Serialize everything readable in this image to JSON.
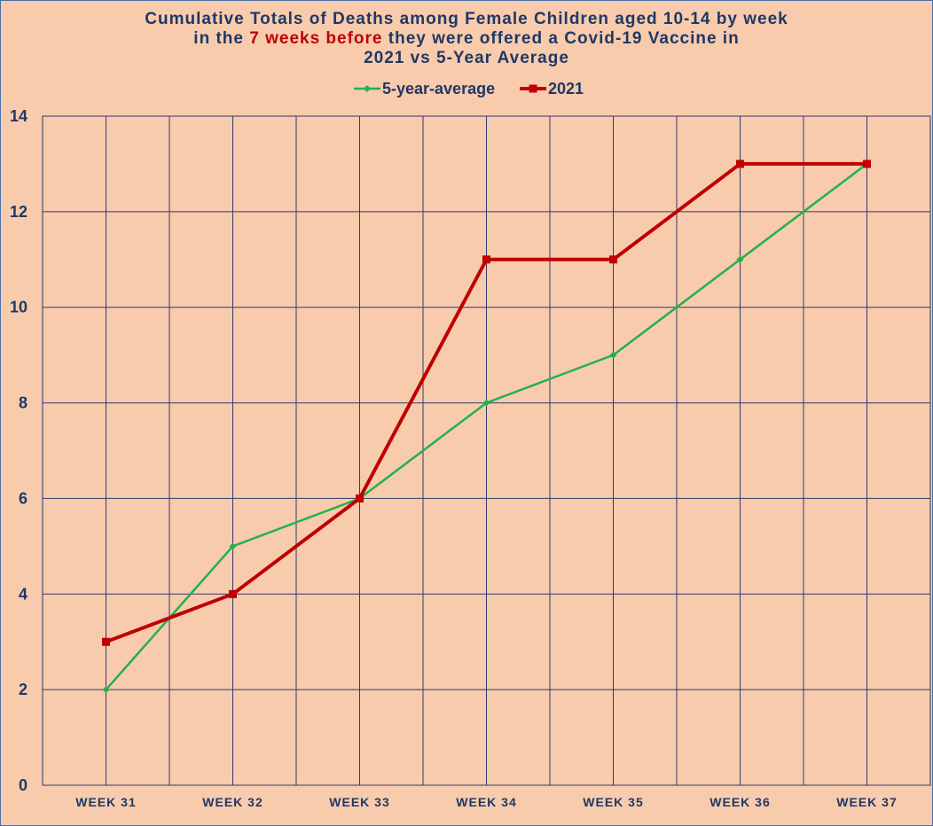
{
  "chart_data": {
    "type": "line",
    "title": {
      "line1": "Cumulative Totals of Deaths among Female Children aged 10-14 by week",
      "line2_pre": "in the ",
      "line2_highlight": "7 weeks before",
      "line2_post": " they were offered a Covid-19 Vaccine in",
      "line3": "2021 vs 5-Year Average"
    },
    "categories": [
      "WEEK 31",
      "WEEK 32",
      "WEEK 33",
      "WEEK 34",
      "WEEK 35",
      "WEEK 36",
      "WEEK 37"
    ],
    "series": [
      {
        "name": "5-year-average",
        "color": "#22b14c",
        "marker": "diamond",
        "values": [
          2,
          5,
          6,
          8,
          9,
          11,
          13
        ]
      },
      {
        "name": "2021",
        "color": "#c00000",
        "marker": "square",
        "values": [
          3,
          4,
          6,
          11,
          11,
          13,
          13
        ]
      }
    ],
    "ylim": [
      0,
      14
    ],
    "yticks": [
      0,
      2,
      4,
      6,
      8,
      10,
      12,
      14
    ],
    "grid": true,
    "legend": "top-center",
    "xlabel": "",
    "ylabel": ""
  }
}
